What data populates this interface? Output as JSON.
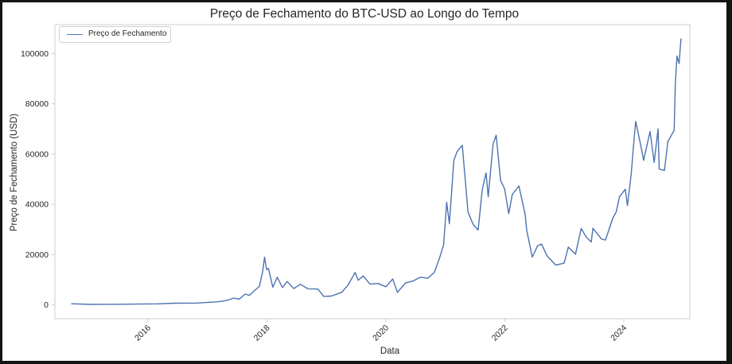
{
  "chart_data": {
    "type": "line",
    "title": "Preço de Fechamento do BTC-USD ao Longo do Tempo",
    "xlabel": "Data",
    "ylabel": "Preço de Fechamento (USD)",
    "x_type": "date",
    "xlim": [
      "2014-06-09",
      "2025-02-09"
    ],
    "ylim": [
      -5500,
      111500
    ],
    "x_ticks": [
      "2016-01-01",
      "2018-01-01",
      "2020-01-01",
      "2022-01-01",
      "2024-01-01"
    ],
    "x_tick_labels": [
      "2016",
      "2018",
      "2020",
      "2022",
      "2024"
    ],
    "y_ticks": [
      0,
      20000,
      40000,
      60000,
      80000,
      100000
    ],
    "y_tick_labels": [
      "0",
      "20000",
      "40000",
      "60000",
      "80000",
      "100000"
    ],
    "grid": false,
    "legend_position": "upper-left",
    "series": [
      {
        "name": "Preço de Fechamento",
        "color": "#4c72b0",
        "x": [
          "2014-09-17",
          "2015-01-15",
          "2015-06-01",
          "2015-11-01",
          "2016-03-01",
          "2016-06-15",
          "2016-11-01",
          "2017-01-05",
          "2017-03-01",
          "2017-05-01",
          "2017-06-10",
          "2017-07-15",
          "2017-08-20",
          "2017-09-15",
          "2017-10-15",
          "2017-11-15",
          "2017-12-05",
          "2017-12-17",
          "2017-12-30",
          "2018-01-10",
          "2018-02-06",
          "2018-03-05",
          "2018-04-06",
          "2018-05-05",
          "2018-06-15",
          "2018-07-25",
          "2018-09-10",
          "2018-11-10",
          "2018-12-15",
          "2019-02-01",
          "2019-04-05",
          "2019-05-15",
          "2019-06-26",
          "2019-07-15",
          "2019-08-15",
          "2019-09-25",
          "2019-11-15",
          "2020-01-01",
          "2020-02-12",
          "2020-03-12",
          "2020-04-30",
          "2020-06-15",
          "2020-07-30",
          "2020-09-15",
          "2020-10-25",
          "2020-11-25",
          "2020-12-20",
          "2021-01-08",
          "2021-01-25",
          "2021-02-21",
          "2021-03-13",
          "2021-04-14",
          "2021-05-19",
          "2021-06-10",
          "2021-06-22",
          "2021-07-20",
          "2021-08-15",
          "2021-09-07",
          "2021-09-20",
          "2021-10-20",
          "2021-11-08",
          "2021-12-05",
          "2021-12-30",
          "2022-01-24",
          "2022-02-15",
          "2022-03-28",
          "2022-05-05",
          "2022-05-15",
          "2022-06-18",
          "2022-07-20",
          "2022-08-14",
          "2022-09-15",
          "2022-11-09",
          "2022-12-30",
          "2023-01-25",
          "2023-03-10",
          "2023-04-14",
          "2023-05-15",
          "2023-06-15",
          "2023-06-25",
          "2023-08-17",
          "2023-09-10",
          "2023-10-25",
          "2023-11-15",
          "2023-12-05",
          "2024-01-10",
          "2024-01-23",
          "2024-02-15",
          "2024-03-05",
          "2024-03-14",
          "2024-04-15",
          "2024-05-01",
          "2024-06-10",
          "2024-07-05",
          "2024-07-29",
          "2024-08-05",
          "2024-09-06",
          "2024-09-27",
          "2024-10-15",
          "2024-11-05",
          "2024-11-12",
          "2024-11-22",
          "2024-12-05",
          "2024-12-17"
        ],
        "y": [
          457,
          200,
          230,
          330,
          420,
          680,
          730,
          1000,
          1200,
          1800,
          2700,
          2300,
          4300,
          3800,
          5600,
          7300,
          13000,
          19000,
          14000,
          14500,
          7000,
          11000,
          6900,
          9300,
          6500,
          8200,
          6400,
          6300,
          3400,
          3500,
          5000,
          8000,
          12900,
          9800,
          11500,
          8300,
          8500,
          7200,
          10300,
          5000,
          8700,
          9500,
          11000,
          10600,
          13000,
          18500,
          23800,
          40800,
          32300,
          57500,
          61000,
          63500,
          37000,
          33500,
          31800,
          29800,
          46000,
          52500,
          43000,
          64000,
          67500,
          49500,
          46200,
          36300,
          44000,
          47300,
          36000,
          29500,
          19000,
          23500,
          24200,
          19600,
          15800,
          16600,
          23000,
          20200,
          30400,
          27000,
          25000,
          30500,
          26200,
          25800,
          34500,
          37000,
          43000,
          46000,
          39500,
          52000,
          67000,
          73000,
          63000,
          57500,
          69000,
          56700,
          70000,
          54000,
          53500,
          65000,
          67000,
          69500,
          88000,
          99000,
          96000,
          106000
        ]
      }
    ]
  }
}
